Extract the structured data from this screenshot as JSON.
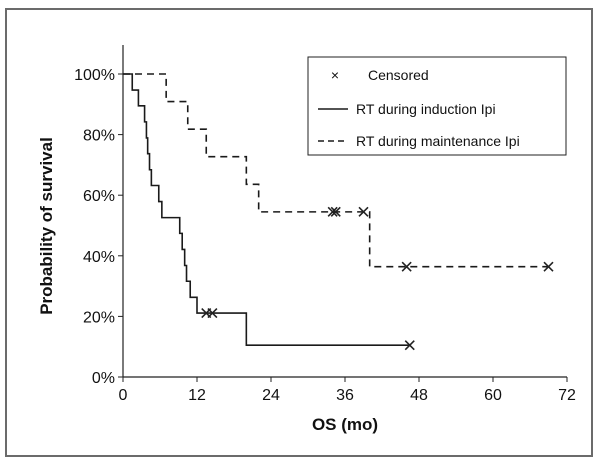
{
  "chart_data": {
    "type": "line",
    "title": "",
    "xlabel": "OS (mo)",
    "ylabel": "Probability of survival",
    "xlim": [
      0,
      72
    ],
    "ylim": [
      0,
      100
    ],
    "x_ticks": [
      0,
      12,
      24,
      36,
      48,
      60,
      72
    ],
    "y_ticks": [
      0,
      20,
      40,
      60,
      80,
      100
    ],
    "x_tick_labels": [
      "0",
      "12",
      "24",
      "36",
      "48",
      "60",
      "72"
    ],
    "y_tick_labels": [
      "0%",
      "20%",
      "40%",
      "60%",
      "80%",
      "100%"
    ],
    "grid": false,
    "legend_position": "top-right",
    "legend": {
      "censored_label": "Censored",
      "censored_symbol": "×"
    },
    "series": [
      {
        "name": "RT during induction Ipi",
        "line_style": "solid",
        "color": "#1a1a1a",
        "steps": [
          [
            0,
            100
          ],
          [
            1.5,
            94.7
          ],
          [
            2.5,
            89.5
          ],
          [
            3.5,
            84.2
          ],
          [
            3.8,
            78.9
          ],
          [
            4,
            73.7
          ],
          [
            4.3,
            68.4
          ],
          [
            4.6,
            63.2
          ],
          [
            5.8,
            57.9
          ],
          [
            6.3,
            52.6
          ],
          [
            9.2,
            47.4
          ],
          [
            9.6,
            42.1
          ],
          [
            10,
            36.8
          ],
          [
            10.3,
            31.6
          ],
          [
            10.9,
            26.3
          ],
          [
            12,
            21.1
          ],
          [
            20,
            10.5
          ],
          [
            46.5,
            10.5
          ]
        ],
        "censored": [
          [
            13.5,
            21.1
          ],
          [
            14.5,
            21.1
          ],
          [
            46.5,
            10.5
          ]
        ]
      },
      {
        "name": "RT during maintenance Ipi",
        "line_style": "dashed",
        "color": "#1a1a1a",
        "steps": [
          [
            0,
            100
          ],
          [
            7,
            100
          ],
          [
            7,
            90.9
          ],
          [
            10.5,
            90.9
          ],
          [
            10.5,
            81.8
          ],
          [
            13.5,
            81.8
          ],
          [
            13.5,
            72.7
          ],
          [
            20,
            72.7
          ],
          [
            20,
            63.6
          ],
          [
            22,
            63.6
          ],
          [
            22,
            54.5
          ],
          [
            40,
            54.5
          ],
          [
            40,
            36.4
          ],
          [
            69,
            36.4
          ]
        ],
        "censored": [
          [
            34,
            54.5
          ],
          [
            34.5,
            54.5
          ],
          [
            39,
            54.5
          ],
          [
            46,
            36.4
          ],
          [
            69,
            36.4
          ]
        ]
      }
    ]
  }
}
